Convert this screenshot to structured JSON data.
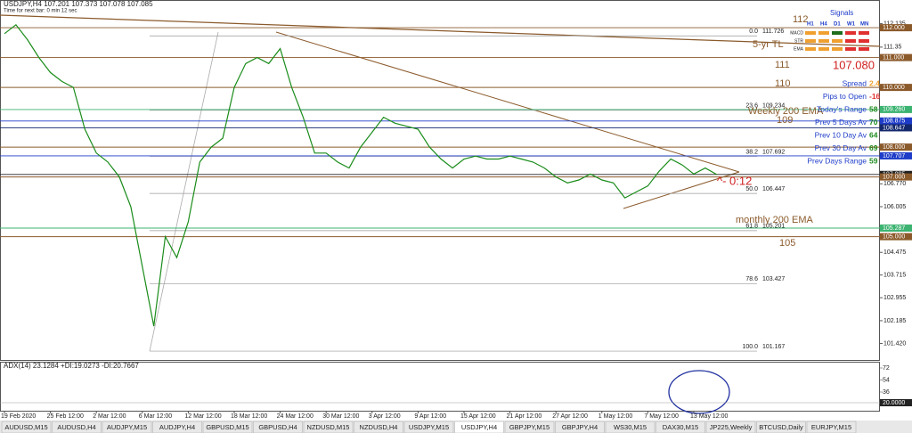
{
  "header": {
    "symbol": "USDJPY,H4 107.201 107.373 107.078 107.085",
    "timer": "Time for next bar: 0 min 12 sec"
  },
  "chart_data": {
    "type": "line",
    "color": "#1a8c1a",
    "categories": [
      "19 Feb 2020",
      null,
      null,
      null,
      "25 Feb 12:00",
      null,
      null,
      null,
      "2 Mar 12:00",
      null,
      null,
      null,
      "6 Mar 12:00",
      null,
      null,
      null,
      "12 Mar 12:00",
      null,
      null,
      null,
      "18 Mar 12:00",
      null,
      null,
      null,
      "24 Mar 12:00",
      null,
      null,
      null,
      "30 Mar 12:00",
      null,
      null,
      null,
      "3 Apr 12:00",
      null,
      null,
      null,
      "9 Apr 12:00",
      null,
      null,
      null,
      "15 Apr 12:00",
      null,
      null,
      null,
      "21 Apr 12:00",
      null,
      null,
      null,
      "27 Apr 12:00",
      null,
      null,
      null,
      "1 May 12:00",
      null,
      null,
      null,
      "7 May 12:00",
      null,
      null,
      null,
      "13 May 12:00",
      null,
      null
    ],
    "values": [
      111.8,
      112.1,
      111.6,
      111.0,
      110.5,
      110.2,
      110.0,
      108.6,
      107.8,
      107.5,
      107.0,
      106.0,
      104.0,
      102.0,
      105.0,
      104.3,
      105.5,
      107.5,
      108.0,
      108.3,
      110.0,
      110.8,
      111.0,
      110.8,
      111.3,
      110.0,
      109.0,
      107.8,
      107.8,
      107.5,
      107.3,
      108.0,
      108.5,
      109.0,
      108.8,
      108.7,
      108.6,
      108.0,
      107.6,
      107.3,
      107.6,
      107.7,
      107.6,
      107.6,
      107.7,
      107.6,
      107.5,
      107.3,
      107.0,
      106.8,
      106.9,
      107.1,
      106.9,
      106.8,
      106.3,
      106.5,
      106.7,
      107.2,
      107.6,
      107.4,
      107.1,
      107.3,
      107.08
    ],
    "ylim": [
      100.84,
      112.63
    ],
    "yticks": [
      {
        "value": 112.135,
        "label": "112.135"
      },
      111.35,
      {
        "value": 106.77,
        "label": "106.770"
      },
      106.005,
      104.475,
      103.715,
      102.955,
      102.185,
      {
        "value": 101.42,
        "label": "101.420"
      }
    ],
    "levels": [
      {
        "value": 112,
        "label": "112.000",
        "color": "#8b5a2b"
      },
      {
        "value": 111,
        "label": "111.000",
        "color": "#8b5a2b"
      },
      {
        "value": 110,
        "label": "110.000",
        "color": "#8b5a2b"
      },
      {
        "value": 109.26,
        "label": "109.260",
        "color": "#3cb371"
      },
      {
        "value": 108.875,
        "label": "108.875",
        "color": "#1e3cc8"
      },
      {
        "value": 108.647,
        "label": "108.647",
        "color": "#14286e"
      },
      {
        "value": 108,
        "label": "108.000",
        "color": "#8b5a2b"
      },
      {
        "value": 107.707,
        "label": "107.707",
        "color": "#1e3cc8"
      },
      {
        "value": 107.085,
        "label": "107.085",
        "color": "#222222"
      },
      {
        "value": 107,
        "label": "107.000",
        "color": "#8b5a2b"
      },
      {
        "value": 105.287,
        "label": "105.287",
        "color": "#3cb371"
      },
      {
        "value": 105,
        "label": "105.000",
        "color": "#8b5a2b"
      }
    ],
    "fibonacci": [
      {
        "level": "0.0",
        "value": 111.726
      },
      {
        "level": "23.6",
        "value": 109.234
      },
      {
        "level": "38.2",
        "value": 107.692
      },
      {
        "level": "50.0",
        "value": 106.447
      },
      {
        "level": "61.8",
        "value": 105.201
      },
      {
        "level": "78.6",
        "value": 103.427
      },
      {
        "level": "100.0",
        "value": 101.167
      }
    ],
    "annotations": [
      "112",
      "5-yr TL",
      "111",
      "107.080",
      "110",
      "Weekly 200 EMA",
      "109",
      "^- 0:12",
      "monthly 200 EMA",
      "105"
    ]
  },
  "info_panel": {
    "title": "Signals",
    "columns": [
      "H1",
      "H4",
      "D1",
      "W1",
      "MN"
    ],
    "rows": [
      {
        "name": "MACD",
        "colors": [
          "#f0a030",
          "#f0a030",
          "#1e6e1e",
          "#e03030",
          "#e03030"
        ]
      },
      {
        "name": "STR",
        "colors": [
          "#f0a030",
          "#f0a030",
          "#f0a030",
          "#e03030",
          "#e03030"
        ]
      },
      {
        "name": "EMA",
        "colors": [
          "#f0a030",
          "#f0a030",
          "#f0a030",
          "#e03030",
          "#e03030"
        ]
      }
    ],
    "stats": [
      {
        "label": "Spread",
        "value": "2.4",
        "color": "#f0a030"
      },
      {
        "label": "Pips to Open",
        "value": "-16",
        "color": "#e03030"
      },
      {
        "label": "Today's Range",
        "value": "58",
        "color": "#1e8c1e"
      },
      {
        "label": "Prev 5 Days Av",
        "value": "70",
        "color": "#1e8c1e"
      },
      {
        "label": "Prev 10 Day Av",
        "value": "64",
        "color": "#1e8c1e"
      },
      {
        "label": "Prev 30 Day Av",
        "value": "69",
        "color": "#1e8c1e"
      },
      {
        "label": "Prev Days Range",
        "value": "59",
        "color": "#1e8c1e"
      }
    ]
  },
  "adx_panel": {
    "title": "ADX(14) 23.1284 +DI:19.0273 -DI:20.7667",
    "ylim": [
      8,
      80
    ],
    "yticks": [
      72,
      54,
      36,
      {
        "value": 20,
        "label": "20.0000"
      }
    ]
  },
  "tabs": {
    "items": [
      "AUDUSD,M15",
      "AUDUSD,H4",
      "AUDJPY,M15",
      "AUDJPY,H4",
      "GBPUSD,M15",
      "GBPUSD,H4",
      "NZDUSD,M15",
      "NZDUSD,H4",
      "USDJPY,M15",
      "USDJPY,H4",
      "GBPJPY,M15",
      "GBPJPY,H4",
      "WS30,M15",
      "DAX30,M15",
      "JP225,Weekly",
      "BTCUSD,Daily",
      "EURJPY,M15"
    ],
    "active": 9
  }
}
